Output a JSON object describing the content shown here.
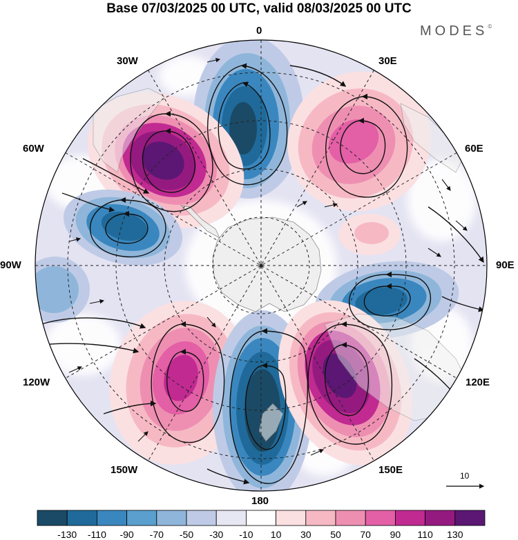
{
  "title": "Base 07/03/2025 00 UTC, valid 08/03/2025 00 UTC",
  "brand": "MODES",
  "brand_mark": "©",
  "longitude_labels": {
    "lon_0": "0",
    "lon_30e": "30E",
    "lon_60e": "60E",
    "lon_90e": "90E",
    "lon_120e": "120E",
    "lon_150e": "150E",
    "lon_180": "180",
    "lon_150w": "150W",
    "lon_120w": "120W",
    "lon_90w": "90W",
    "lon_60w": "60W",
    "lon_30w": "30W"
  },
  "vector_scale_label": "10",
  "colorbar": {
    "colors": [
      "#1b4a66",
      "#1f6a9a",
      "#3a87bf",
      "#5a9fce",
      "#8fb6da",
      "#bfcbe6",
      "#e7e6f3",
      "#ffffff",
      "#fbe0e2",
      "#f6b9c4",
      "#ee8fb2",
      "#e35fa6",
      "#c02a91",
      "#951a80",
      "#5b1773"
    ],
    "tick_labels": [
      "-130",
      "-110",
      "-90",
      "-70",
      "-50",
      "-30",
      "-10",
      "10",
      "30",
      "50",
      "70",
      "90",
      "110",
      "130"
    ]
  }
}
